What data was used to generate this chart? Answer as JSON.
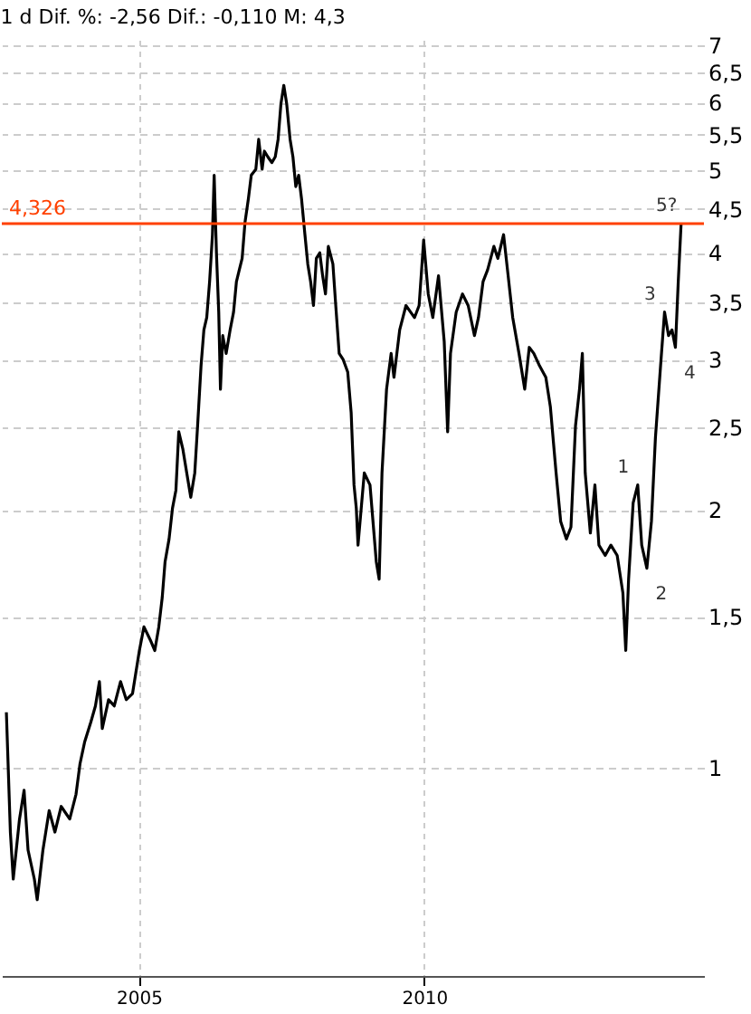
{
  "chart_data": {
    "type": "line",
    "title": "1 d Dif. %: -2,56 Dif.: -0,110 M: 4,3",
    "x": [
      2002.68,
      2002.75,
      2002.8,
      2002.91,
      2002.99,
      2003.06,
      2003.17,
      2003.22,
      2003.32,
      2003.43,
      2003.53,
      2003.64,
      2003.79,
      2003.9,
      2003.97,
      2004.05,
      2004.16,
      2004.24,
      2004.31,
      2004.36,
      2004.47,
      2004.57,
      2004.68,
      2004.78,
      2004.89,
      2005.01,
      2005.09,
      2005.2,
      2005.28,
      2005.35,
      2005.41,
      2005.46,
      2005.53,
      2005.59,
      2005.65,
      2005.7,
      2005.77,
      2005.84,
      2005.91,
      2005.98,
      2006.03,
      2006.09,
      2006.14,
      2006.19,
      2006.24,
      2006.29,
      2006.32,
      2006.36,
      2006.4,
      2006.43,
      2006.47,
      2006.53,
      2006.6,
      2006.66,
      2006.71,
      2006.76,
      2006.81,
      2006.86,
      2006.92,
      2006.97,
      2007.05,
      2007.1,
      2007.16,
      2007.2,
      2007.26,
      2007.33,
      2007.39,
      2007.44,
      2007.49,
      2007.54,
      2007.59,
      2007.65,
      2007.7,
      2007.75,
      2007.8,
      2007.85,
      2007.91,
      2007.96,
      2008.01,
      2008.06,
      2008.11,
      2008.17,
      2008.22,
      2008.27,
      2008.32,
      2008.4,
      2008.45,
      2008.51,
      2008.58,
      2008.66,
      2008.72,
      2008.77,
      2008.81,
      2008.84,
      2008.95,
      2009.05,
      2009.16,
      2009.21,
      2009.26,
      2009.34,
      2009.42,
      2009.47,
      2009.57,
      2009.68,
      2009.76,
      2009.83,
      2009.91,
      2009.99,
      2010.07,
      2010.15,
      2010.25,
      2010.35,
      2010.41,
      2010.46,
      2010.56,
      2010.67,
      2010.77,
      2010.88,
      2010.95,
      2011.03,
      2011.11,
      2011.22,
      2011.29,
      2011.39,
      2011.47,
      2011.55,
      2011.66,
      2011.76,
      2011.84,
      2011.92,
      2012.02,
      2012.13,
      2012.21,
      2012.31,
      2012.39,
      2012.49,
      2012.57,
      2012.65,
      2012.72,
      2012.77,
      2012.82,
      2012.91,
      2012.99,
      2013.06,
      2013.17,
      2013.27,
      2013.38,
      2013.48,
      2013.53,
      2013.58,
      2013.66,
      2013.74,
      2013.81,
      2013.9,
      2013.98,
      2014.05,
      2014.14,
      2014.21,
      2014.28,
      2014.34,
      2014.4,
      2014.45,
      2014.5
    ],
    "series": [
      {
        "color": "#000000",
        "values": [
          1.16,
          0.84,
          0.74,
          0.87,
          0.94,
          0.8,
          0.74,
          0.7,
          0.8,
          0.89,
          0.84,
          0.9,
          0.87,
          0.93,
          1.01,
          1.07,
          1.13,
          1.18,
          1.26,
          1.11,
          1.2,
          1.18,
          1.26,
          1.2,
          1.22,
          1.37,
          1.46,
          1.41,
          1.37,
          1.46,
          1.58,
          1.74,
          1.85,
          2.01,
          2.11,
          2.47,
          2.36,
          2.21,
          2.07,
          2.21,
          2.51,
          2.95,
          3.25,
          3.36,
          3.7,
          4.2,
          4.93,
          4.0,
          3.41,
          2.77,
          3.2,
          3.05,
          3.25,
          3.41,
          3.7,
          3.82,
          3.94,
          4.34,
          4.63,
          4.93,
          5.01,
          5.43,
          5.01,
          5.26,
          5.18,
          5.1,
          5.18,
          5.43,
          5.98,
          6.28,
          5.98,
          5.43,
          5.18,
          4.78,
          4.93,
          4.63,
          4.2,
          3.88,
          3.7,
          3.47,
          3.94,
          4.0,
          3.76,
          3.58,
          4.07,
          3.88,
          3.47,
          3.05,
          3.0,
          2.9,
          2.6,
          2.14,
          2.01,
          1.82,
          2.21,
          2.14,
          1.74,
          1.66,
          2.21,
          2.77,
          3.05,
          2.86,
          3.25,
          3.47,
          3.41,
          3.36,
          3.47,
          4.14,
          3.58,
          3.36,
          3.76,
          3.15,
          2.47,
          3.05,
          3.41,
          3.58,
          3.47,
          3.2,
          3.36,
          3.7,
          3.82,
          4.07,
          3.94,
          4.2,
          3.76,
          3.36,
          3.05,
          2.77,
          3.1,
          3.05,
          2.95,
          2.86,
          2.64,
          2.21,
          1.94,
          1.85,
          1.91,
          2.51,
          2.77,
          3.05,
          2.21,
          1.88,
          2.14,
          1.82,
          1.77,
          1.82,
          1.77,
          1.6,
          1.37,
          1.66,
          2.04,
          2.14,
          1.82,
          1.71,
          1.94,
          2.43,
          2.95,
          3.41,
          3.2,
          3.25,
          3.1,
          3.7,
          4.33
        ]
      }
    ],
    "xlim": [
      2002.6,
      2014.9
    ],
    "xticks": [
      2005,
      2010
    ],
    "ylim": [
      0.57,
      7.1
    ],
    "yticks": [
      1,
      {
        "value": 1.5,
        "label": "1,5"
      },
      2,
      {
        "value": 2.5,
        "label": "2,5"
      },
      3,
      {
        "value": 3.5,
        "label": "3,5"
      },
      4,
      {
        "value": 4.5,
        "label": "4,5"
      },
      5,
      {
        "value": 5.5,
        "label": "5,5"
      },
      6,
      {
        "value": 6.5,
        "label": "6,5"
      },
      7
    ],
    "log": true,
    "grid": true,
    "ref_lines": [
      {
        "axis": "y",
        "value": 4.326,
        "label": "4,326",
        "color": "#ff4000"
      }
    ],
    "annotations": [
      {
        "text": "1",
        "x": 2013.74,
        "y": 2.14
      },
      {
        "text": "2",
        "x": 2013.9,
        "y": 1.71
      },
      {
        "text": "3",
        "x": 2014.21,
        "y": 3.41
      },
      {
        "text": "4",
        "x": 2014.4,
        "y": 3.1
      },
      {
        "text": "5?",
        "x": 2014.5,
        "y": 4.33
      }
    ]
  }
}
